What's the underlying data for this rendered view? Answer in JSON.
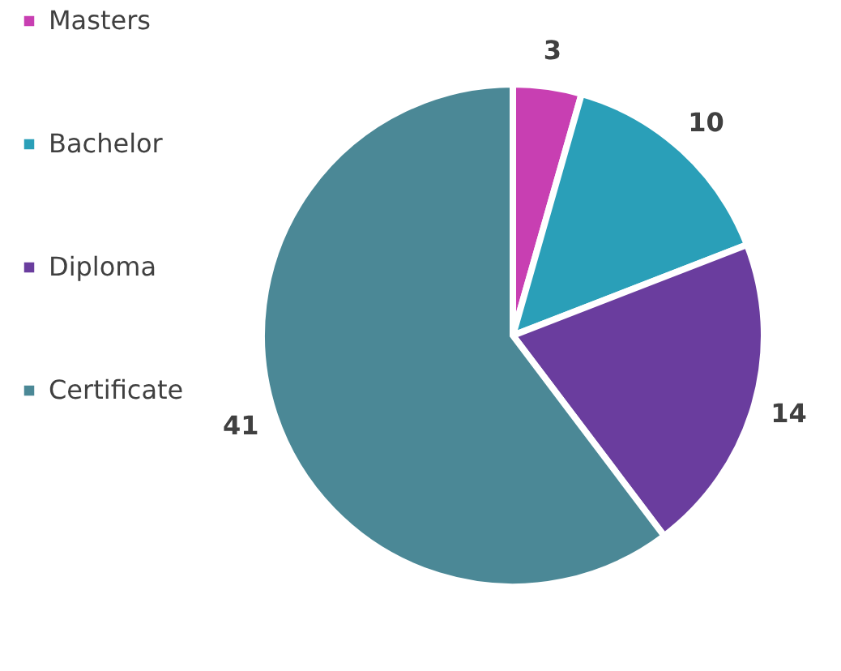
{
  "chart_data": {
    "type": "pie",
    "categories": [
      "Masters",
      "Bachelor",
      "Diploma",
      "Certificate"
    ],
    "values": [
      3,
      10,
      14,
      41
    ],
    "colors": [
      "#c83fb2",
      "#2a9fb8",
      "#6a3d9e",
      "#4b8896"
    ],
    "data_labels": true,
    "legend": "left"
  }
}
